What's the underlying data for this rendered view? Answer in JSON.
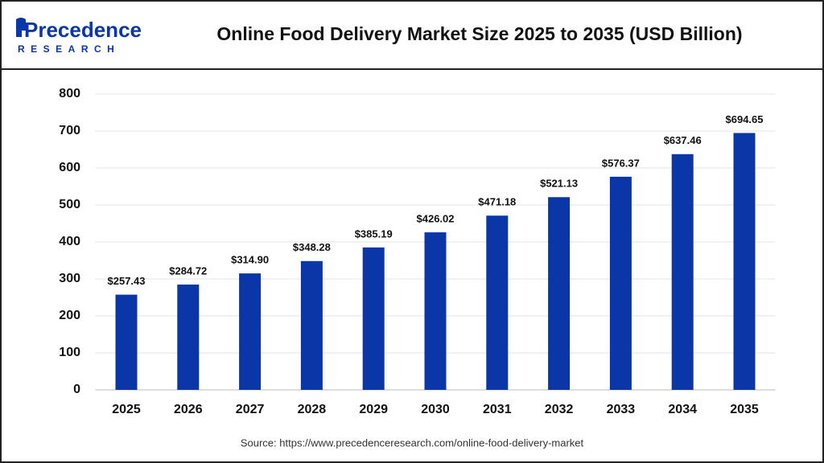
{
  "brand": {
    "name": "Precedence",
    "tagline": "RESEARCH"
  },
  "source": "Source: https://www.precedenceresearch.com/online-food-delivery-market",
  "chart_data": {
    "type": "bar",
    "title": "Online Food Delivery Market Size 2025 to 2035 (USD Billion)",
    "categories": [
      "2025",
      "2026",
      "2027",
      "2028",
      "2029",
      "2030",
      "2031",
      "2032",
      "2033",
      "2034",
      "2035"
    ],
    "values": [
      257.43,
      284.72,
      314.9,
      348.28,
      385.19,
      426.02,
      471.18,
      521.13,
      576.37,
      637.46,
      694.65
    ],
    "value_labels": [
      "$257.43",
      "$284.72",
      "$314.90",
      "$348.28",
      "$385.19",
      "$426.02",
      "$471.18",
      "$521.13",
      "$576.37",
      "$637.46",
      "$694.65"
    ],
    "color": "#0b36a8",
    "ylim": [
      0,
      800
    ],
    "yticks": [
      0,
      100,
      200,
      300,
      400,
      500,
      600,
      700,
      800
    ],
    "grid": true
  }
}
